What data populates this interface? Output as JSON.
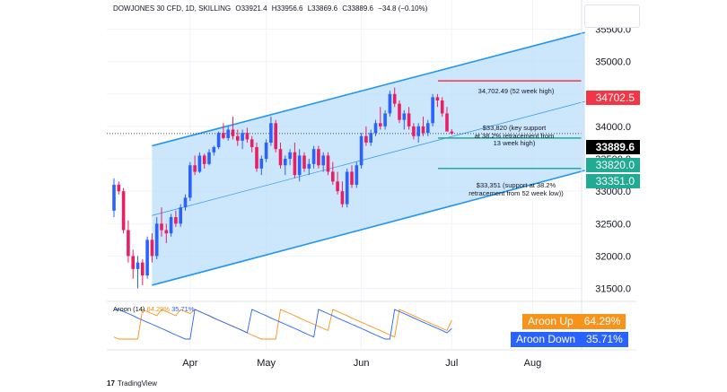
{
  "header": {
    "symbol": "DOWJONES 30 CFD, 1D, SKILLING",
    "open": "O33921.4",
    "high": "H33956.6",
    "low": "L33869.6",
    "close": "C33889.6",
    "change": "−34.8 (−0.10%)"
  },
  "oscillator": {
    "name": "Aroon (14)",
    "up_value": "64.29%",
    "down_value": "35.71%",
    "up_label": "Aroon Up",
    "down_label": "Aroon Down",
    "up_color": "#f7931a",
    "down_color": "#2962ff"
  },
  "price_badges": [
    {
      "label": "34702.5",
      "price": 34702.5,
      "color": "#f23645"
    },
    {
      "label": "33889.6",
      "price": 33889.6,
      "color": "#000000"
    },
    {
      "label": "33820.0",
      "price": 33820.0,
      "color": "#22ab94"
    },
    {
      "label": "33351.0",
      "price": 33351.0,
      "color": "#22ab94"
    }
  ],
  "annotations": {
    "high52": "34,702.49 (52 week high)",
    "support_key": "$33,820 (key support\nat 38.2% retracement from\n13 week high)",
    "support_low": "$33,351 (support at 38.2%\nretracement from 52 week low))"
  },
  "branding": {
    "logo_text": "TradingView",
    "mark": "17"
  },
  "chart_data": {
    "type": "candlestick",
    "y_axis": {
      "ticks": [
        31500,
        32000,
        32500,
        33000,
        33500,
        34000,
        34500,
        35000,
        35500
      ],
      "range": [
        31300,
        35950
      ]
    },
    "x_axis": {
      "ticks": [
        "Apr",
        "May",
        "Jun",
        "Jul",
        "Aug"
      ]
    },
    "horizontal_levels": [
      {
        "price": 34702.49,
        "color": "#f23645"
      },
      {
        "price": 33820,
        "color": "#22ab94"
      },
      {
        "price": 33351,
        "color": "#22ab94"
      }
    ],
    "last_price_line": 33889.6,
    "channel": {
      "upper": [
        [
          0,
          33700
        ],
        [
          91,
          35450
        ]
      ],
      "lower": [
        [
          0,
          31550
        ],
        [
          91,
          33320
        ]
      ],
      "fill": "#bbdefb",
      "line": "#2196f3"
    },
    "colors": {
      "up": "#2962ff",
      "down": "#e91e63"
    },
    "candles": [
      [
        32700,
        33200,
        32600,
        33100
      ],
      [
        33100,
        33150,
        32950,
        33000
      ],
      [
        33000,
        33050,
        32350,
        32400
      ],
      [
        32400,
        32550,
        31900,
        32000
      ],
      [
        32000,
        32100,
        31650,
        31800
      ],
      [
        31800,
        32000,
        31500,
        31900
      ],
      [
        31900,
        31950,
        31550,
        31700
      ],
      [
        31700,
        32300,
        31650,
        32250
      ],
      [
        32250,
        32350,
        31900,
        32000
      ],
      [
        32000,
        32600,
        31950,
        32500
      ],
      [
        32500,
        32750,
        32300,
        32400
      ],
      [
        32400,
        32500,
        32200,
        32350
      ],
      [
        32350,
        32650,
        32300,
        32600
      ],
      [
        32600,
        32700,
        32450,
        32500
      ],
      [
        32500,
        32800,
        32450,
        32750
      ],
      [
        32750,
        32950,
        32700,
        32900
      ],
      [
        32900,
        33450,
        32850,
        33400
      ],
      [
        33400,
        33550,
        33250,
        33300
      ],
      [
        33300,
        33600,
        33280,
        33550
      ],
      [
        33550,
        33580,
        33350,
        33420
      ],
      [
        33420,
        33650,
        33400,
        33600
      ],
      [
        33600,
        33700,
        33550,
        33680
      ],
      [
        33680,
        33920,
        33650,
        33900
      ],
      [
        33900,
        34050,
        33800,
        33820
      ],
      [
        33820,
        34000,
        33780,
        33950
      ],
      [
        33950,
        34150,
        33800,
        33850
      ],
      [
        33850,
        33950,
        33700,
        33780
      ],
      [
        33780,
        33950,
        33650,
        33900
      ],
      [
        33900,
        33980,
        33750,
        33800
      ],
      [
        33800,
        33850,
        33600,
        33680
      ],
      [
        33680,
        33750,
        33300,
        33350
      ],
      [
        33350,
        33550,
        33250,
        33500
      ],
      [
        33500,
        33800,
        33450,
        33750
      ],
      [
        33750,
        34150,
        33700,
        34050
      ],
      [
        34050,
        34100,
        33600,
        33650
      ],
      [
        33650,
        33750,
        33350,
        33400
      ],
      [
        33400,
        33550,
        33250,
        33500
      ],
      [
        33500,
        33650,
        33400,
        33600
      ],
      [
        33600,
        33750,
        33200,
        33250
      ],
      [
        33250,
        33650,
        33150,
        33550
      ],
      [
        33550,
        33600,
        33300,
        33350
      ],
      [
        33350,
        33500,
        33250,
        33420
      ],
      [
        33420,
        33700,
        33350,
        33650
      ],
      [
        33650,
        33700,
        33350,
        33400
      ],
      [
        33400,
        33600,
        33300,
        33550
      ],
      [
        33550,
        33600,
        33250,
        33300
      ],
      [
        33300,
        33450,
        33100,
        33150
      ],
      [
        33150,
        33300,
        32950,
        33000
      ],
      [
        33000,
        33150,
        32750,
        32800
      ],
      [
        32800,
        33350,
        32750,
        33300
      ],
      [
        33300,
        33400,
        33050,
        33100
      ],
      [
        33100,
        33450,
        33050,
        33400
      ],
      [
        33400,
        33900,
        33350,
        33850
      ],
      [
        33850,
        34000,
        33700,
        33750
      ],
      [
        33750,
        33950,
        33700,
        33900
      ],
      [
        33900,
        34100,
        33850,
        34050
      ],
      [
        34050,
        34300,
        33950,
        34000
      ],
      [
        34000,
        34250,
        33950,
        34200
      ],
      [
        34200,
        34550,
        34150,
        34500
      ],
      [
        34500,
        34600,
        34300,
        34350
      ],
      [
        34350,
        34400,
        34050,
        34100
      ],
      [
        34100,
        34250,
        33950,
        34200
      ],
      [
        34200,
        34300,
        33950,
        34000
      ],
      [
        34000,
        34050,
        33800,
        33850
      ],
      [
        33850,
        34050,
        33750,
        34000
      ],
      [
        34000,
        34150,
        33850,
        33900
      ],
      [
        33900,
        34100,
        33850,
        34050
      ],
      [
        34050,
        34500,
        34000,
        34450
      ],
      [
        34450,
        34500,
        34300,
        34400
      ],
      [
        34400,
        34450,
        34150,
        34200
      ],
      [
        34200,
        34300,
        33950,
        33921
      ],
      [
        33921,
        33957,
        33870,
        33890
      ]
    ],
    "aroon_up": [
      7,
      0,
      0,
      0,
      0,
      0,
      100,
      93,
      86,
      79,
      100,
      93,
      86,
      79,
      100,
      93,
      86,
      100,
      93,
      86,
      79,
      71,
      64,
      57,
      50,
      43,
      36,
      29,
      21,
      14,
      7,
      0,
      0,
      0,
      0,
      100,
      93,
      86,
      79,
      71,
      64,
      57,
      50,
      43,
      36,
      29,
      100,
      93,
      86,
      79,
      71,
      64,
      57,
      50,
      43,
      36,
      29,
      21,
      14,
      7,
      100,
      93,
      86,
      79,
      71,
      64,
      57,
      50,
      43,
      36,
      29,
      64
    ],
    "aroon_down": [
      100,
      100,
      93,
      86,
      79,
      71,
      64,
      57,
      50,
      43,
      36,
      29,
      21,
      14,
      7,
      0,
      0,
      100,
      93,
      86,
      79,
      71,
      64,
      57,
      50,
      43,
      36,
      29,
      21,
      100,
      93,
      86,
      79,
      71,
      64,
      57,
      50,
      43,
      36,
      29,
      21,
      14,
      7,
      100,
      93,
      86,
      79,
      71,
      64,
      57,
      50,
      43,
      36,
      29,
      21,
      14,
      7,
      0,
      0,
      100,
      93,
      86,
      79,
      71,
      64,
      57,
      50,
      43,
      36,
      29,
      21,
      36
    ]
  }
}
